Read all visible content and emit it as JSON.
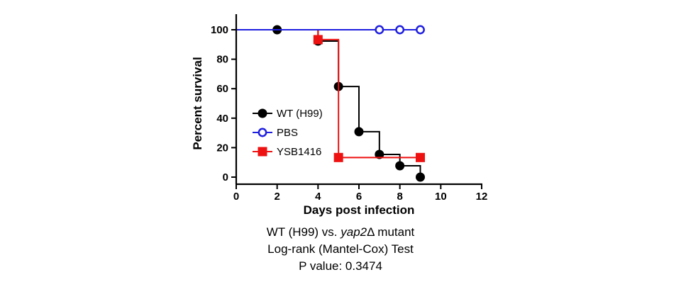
{
  "chart_data": {
    "type": "line",
    "subtype": "kaplan-meier step",
    "xlabel": "Days post infection",
    "ylabel": "Percent survival",
    "xlim": [
      0,
      12
    ],
    "ylim": [
      0,
      100
    ],
    "xticks": [
      0,
      2,
      4,
      6,
      8,
      10,
      12
    ],
    "yticks": [
      0,
      20,
      40,
      60,
      80,
      100
    ],
    "grid": false,
    "legend_position": "center-left",
    "series": [
      {
        "name": "WT (H99)",
        "color": "#000000",
        "marker": "filled-circle",
        "x": [
          0,
          2,
          4,
          5,
          6,
          7,
          8,
          9
        ],
        "y": [
          100,
          100,
          92.3,
          61.5,
          30.8,
          15.4,
          7.7,
          0
        ],
        "markers_x": [
          2,
          4,
          5,
          6,
          7,
          8,
          9
        ]
      },
      {
        "name": "PBS",
        "color": "#1f1fe0",
        "marker": "open-circle",
        "x": [
          0,
          9
        ],
        "y": [
          100,
          100
        ],
        "markers_x": [
          7,
          8,
          9
        ]
      },
      {
        "name": "YSB1416",
        "color": "#ee1111",
        "marker": "filled-square",
        "x": [
          0,
          4,
          5,
          9
        ],
        "y": [
          100,
          93.3,
          13.3,
          13.3
        ],
        "markers_x": [
          4,
          5,
          9
        ]
      }
    ]
  },
  "caption": {
    "line1_prefix": "WT (H99) vs. ",
    "line1_italic": "yap2",
    "line1_suffix": "Δ mutant",
    "line2": "Log-rank (Mantel-Cox) Test",
    "line3": "P value: 0.3474"
  }
}
